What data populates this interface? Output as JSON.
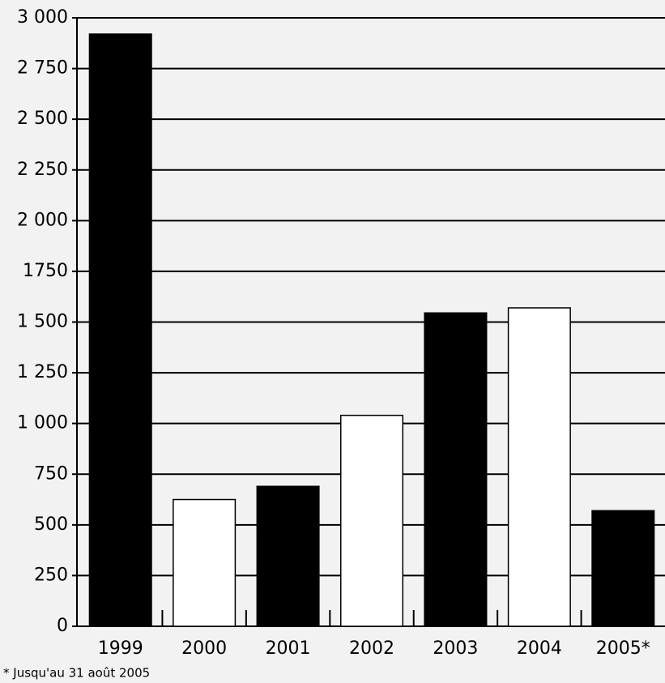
{
  "chart_data": {
    "type": "bar",
    "categories": [
      "1999",
      "2000",
      "2001",
      "2002",
      "2003",
      "2004",
      "2005*"
    ],
    "values": [
      2920,
      625,
      690,
      1040,
      1545,
      1570,
      570
    ],
    "colors": [
      "#000000",
      "#ffffff",
      "#000000",
      "#ffffff",
      "#000000",
      "#ffffff",
      "#000000"
    ],
    "ylim": [
      0,
      3000
    ],
    "yticks": [
      0,
      250,
      500,
      750,
      {
        "value": 1000,
        "label": "1 000"
      },
      {
        "value": 1250,
        "label": "1 250"
      },
      {
        "value": 1500,
        "label": "1 500"
      },
      {
        "value": 1750,
        "label": "1750"
      },
      {
        "value": 2000,
        "label": "2 000"
      },
      {
        "value": 2250,
        "label": "2 250"
      },
      {
        "value": 2500,
        "label": "2 500"
      },
      {
        "value": 2750,
        "label": "2 750"
      },
      {
        "value": 3000,
        "label": "3 000"
      }
    ],
    "grid": true,
    "footnote": "* Jusqu'au 31 août 2005"
  }
}
